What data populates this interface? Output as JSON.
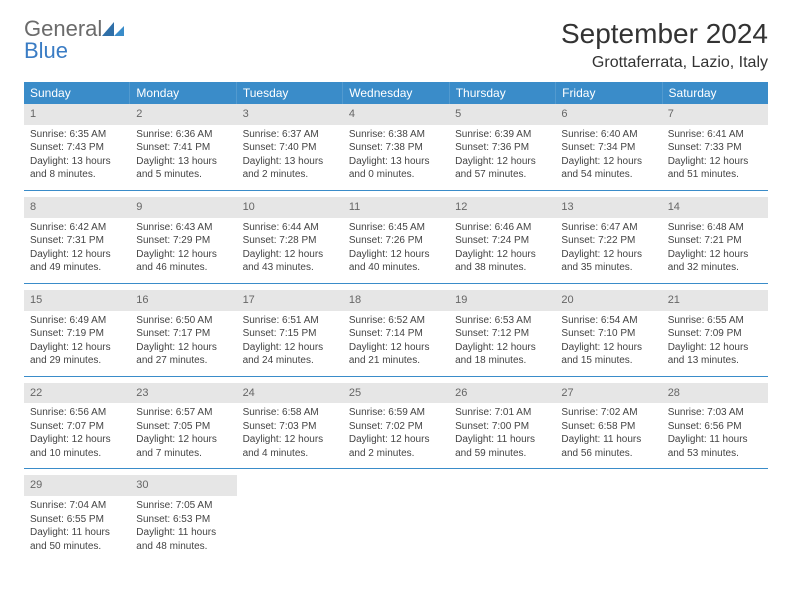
{
  "brand": {
    "part1": "General",
    "part2": "Blue"
  },
  "title": "September 2024",
  "location": "Grottaferrata, Lazio, Italy",
  "colors": {
    "header_bar": "#3a8cc9",
    "day_num_bg": "#e6e6e6",
    "text": "#333333",
    "brand_gray": "#6b6b6b",
    "brand_blue": "#3a7cc4"
  },
  "daysOfWeek": [
    "Sunday",
    "Monday",
    "Tuesday",
    "Wednesday",
    "Thursday",
    "Friday",
    "Saturday"
  ],
  "weeks": [
    [
      {
        "n": "1",
        "sunrise": "Sunrise: 6:35 AM",
        "sunset": "Sunset: 7:43 PM",
        "daylight": "Daylight: 13 hours and 8 minutes."
      },
      {
        "n": "2",
        "sunrise": "Sunrise: 6:36 AM",
        "sunset": "Sunset: 7:41 PM",
        "daylight": "Daylight: 13 hours and 5 minutes."
      },
      {
        "n": "3",
        "sunrise": "Sunrise: 6:37 AM",
        "sunset": "Sunset: 7:40 PM",
        "daylight": "Daylight: 13 hours and 2 minutes."
      },
      {
        "n": "4",
        "sunrise": "Sunrise: 6:38 AM",
        "sunset": "Sunset: 7:38 PM",
        "daylight": "Daylight: 13 hours and 0 minutes."
      },
      {
        "n": "5",
        "sunrise": "Sunrise: 6:39 AM",
        "sunset": "Sunset: 7:36 PM",
        "daylight": "Daylight: 12 hours and 57 minutes."
      },
      {
        "n": "6",
        "sunrise": "Sunrise: 6:40 AM",
        "sunset": "Sunset: 7:34 PM",
        "daylight": "Daylight: 12 hours and 54 minutes."
      },
      {
        "n": "7",
        "sunrise": "Sunrise: 6:41 AM",
        "sunset": "Sunset: 7:33 PM",
        "daylight": "Daylight: 12 hours and 51 minutes."
      }
    ],
    [
      {
        "n": "8",
        "sunrise": "Sunrise: 6:42 AM",
        "sunset": "Sunset: 7:31 PM",
        "daylight": "Daylight: 12 hours and 49 minutes."
      },
      {
        "n": "9",
        "sunrise": "Sunrise: 6:43 AM",
        "sunset": "Sunset: 7:29 PM",
        "daylight": "Daylight: 12 hours and 46 minutes."
      },
      {
        "n": "10",
        "sunrise": "Sunrise: 6:44 AM",
        "sunset": "Sunset: 7:28 PM",
        "daylight": "Daylight: 12 hours and 43 minutes."
      },
      {
        "n": "11",
        "sunrise": "Sunrise: 6:45 AM",
        "sunset": "Sunset: 7:26 PM",
        "daylight": "Daylight: 12 hours and 40 minutes."
      },
      {
        "n": "12",
        "sunrise": "Sunrise: 6:46 AM",
        "sunset": "Sunset: 7:24 PM",
        "daylight": "Daylight: 12 hours and 38 minutes."
      },
      {
        "n": "13",
        "sunrise": "Sunrise: 6:47 AM",
        "sunset": "Sunset: 7:22 PM",
        "daylight": "Daylight: 12 hours and 35 minutes."
      },
      {
        "n": "14",
        "sunrise": "Sunrise: 6:48 AM",
        "sunset": "Sunset: 7:21 PM",
        "daylight": "Daylight: 12 hours and 32 minutes."
      }
    ],
    [
      {
        "n": "15",
        "sunrise": "Sunrise: 6:49 AM",
        "sunset": "Sunset: 7:19 PM",
        "daylight": "Daylight: 12 hours and 29 minutes."
      },
      {
        "n": "16",
        "sunrise": "Sunrise: 6:50 AM",
        "sunset": "Sunset: 7:17 PM",
        "daylight": "Daylight: 12 hours and 27 minutes."
      },
      {
        "n": "17",
        "sunrise": "Sunrise: 6:51 AM",
        "sunset": "Sunset: 7:15 PM",
        "daylight": "Daylight: 12 hours and 24 minutes."
      },
      {
        "n": "18",
        "sunrise": "Sunrise: 6:52 AM",
        "sunset": "Sunset: 7:14 PM",
        "daylight": "Daylight: 12 hours and 21 minutes."
      },
      {
        "n": "19",
        "sunrise": "Sunrise: 6:53 AM",
        "sunset": "Sunset: 7:12 PM",
        "daylight": "Daylight: 12 hours and 18 minutes."
      },
      {
        "n": "20",
        "sunrise": "Sunrise: 6:54 AM",
        "sunset": "Sunset: 7:10 PM",
        "daylight": "Daylight: 12 hours and 15 minutes."
      },
      {
        "n": "21",
        "sunrise": "Sunrise: 6:55 AM",
        "sunset": "Sunset: 7:09 PM",
        "daylight": "Daylight: 12 hours and 13 minutes."
      }
    ],
    [
      {
        "n": "22",
        "sunrise": "Sunrise: 6:56 AM",
        "sunset": "Sunset: 7:07 PM",
        "daylight": "Daylight: 12 hours and 10 minutes."
      },
      {
        "n": "23",
        "sunrise": "Sunrise: 6:57 AM",
        "sunset": "Sunset: 7:05 PM",
        "daylight": "Daylight: 12 hours and 7 minutes."
      },
      {
        "n": "24",
        "sunrise": "Sunrise: 6:58 AM",
        "sunset": "Sunset: 7:03 PM",
        "daylight": "Daylight: 12 hours and 4 minutes."
      },
      {
        "n": "25",
        "sunrise": "Sunrise: 6:59 AM",
        "sunset": "Sunset: 7:02 PM",
        "daylight": "Daylight: 12 hours and 2 minutes."
      },
      {
        "n": "26",
        "sunrise": "Sunrise: 7:01 AM",
        "sunset": "Sunset: 7:00 PM",
        "daylight": "Daylight: 11 hours and 59 minutes."
      },
      {
        "n": "27",
        "sunrise": "Sunrise: 7:02 AM",
        "sunset": "Sunset: 6:58 PM",
        "daylight": "Daylight: 11 hours and 56 minutes."
      },
      {
        "n": "28",
        "sunrise": "Sunrise: 7:03 AM",
        "sunset": "Sunset: 6:56 PM",
        "daylight": "Daylight: 11 hours and 53 minutes."
      }
    ],
    [
      {
        "n": "29",
        "sunrise": "Sunrise: 7:04 AM",
        "sunset": "Sunset: 6:55 PM",
        "daylight": "Daylight: 11 hours and 50 minutes."
      },
      {
        "n": "30",
        "sunrise": "Sunrise: 7:05 AM",
        "sunset": "Sunset: 6:53 PM",
        "daylight": "Daylight: 11 hours and 48 minutes."
      },
      null,
      null,
      null,
      null,
      null
    ]
  ]
}
